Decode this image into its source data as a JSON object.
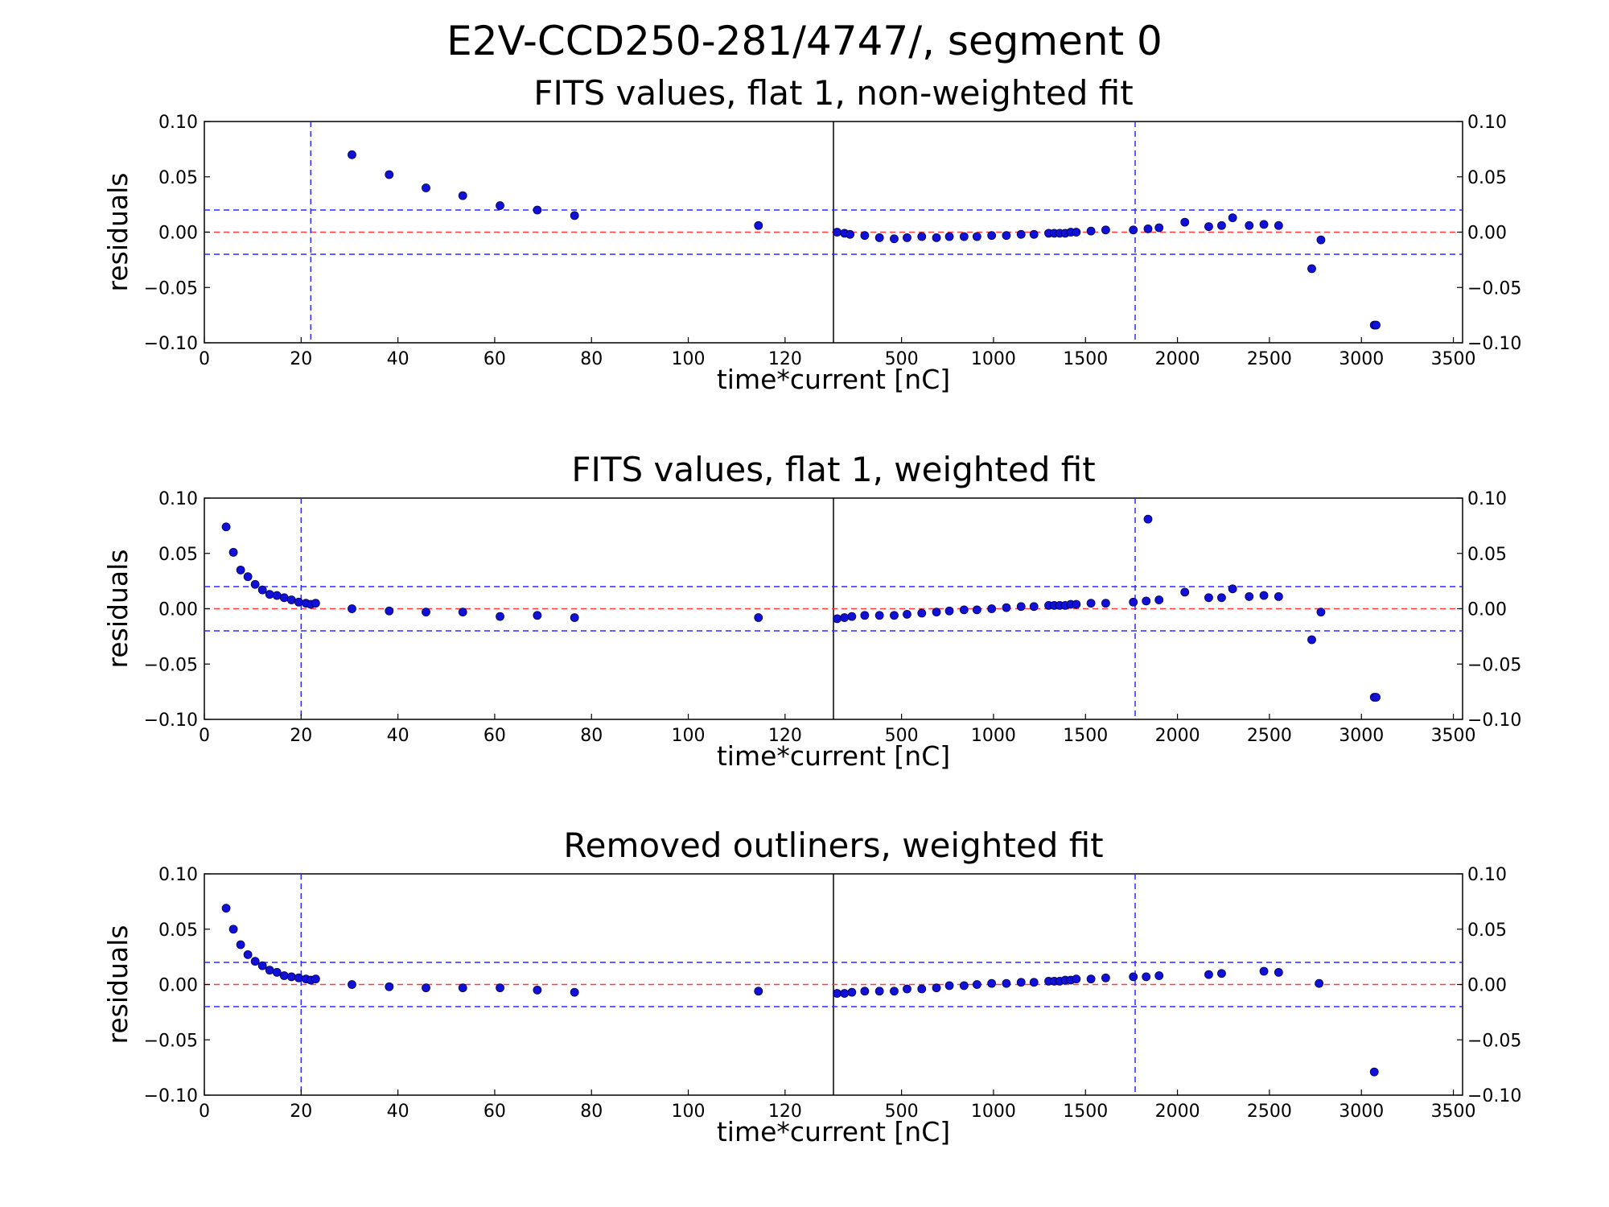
{
  "figure": {
    "suptitle": "E2V-CCD250-281/4747/, segment 0"
  },
  "chart_data": [
    {
      "type": "scatter",
      "title": "FITS values, flat 1, non-weighted fit",
      "xlabel": "time*current [nC]",
      "ylabel": "residuals",
      "ylim": [
        -0.1,
        0.1
      ],
      "yticks": [
        "0.10",
        "0.05",
        "0.00",
        "−0.05",
        "−0.10"
      ],
      "threshold_lines": {
        "zero": 0.0,
        "upper": 0.02,
        "lower": -0.02
      },
      "left": {
        "xlim": [
          0,
          130
        ],
        "xticks": [
          "0",
          "20",
          "40",
          "60",
          "80",
          "100",
          "120"
        ],
        "vline": 22,
        "points": [
          [
            30.5,
            0.07
          ],
          [
            38.2,
            0.052
          ],
          [
            45.8,
            0.04
          ],
          [
            53.4,
            0.033
          ],
          [
            61.1,
            0.024
          ],
          [
            68.8,
            0.02
          ],
          [
            76.5,
            0.015
          ],
          [
            114.5,
            0.006
          ]
        ]
      },
      "right": {
        "xlim": [
          130,
          3550
        ],
        "xticks": [
          "500",
          "1000",
          "1500",
          "2000",
          "2500",
          "3000",
          "3500"
        ],
        "vline": 1770,
        "points": [
          [
            150,
            0.0
          ],
          [
            190,
            -0.001
          ],
          [
            220,
            -0.002
          ],
          [
            300,
            -0.003
          ],
          [
            380,
            -0.005
          ],
          [
            460,
            -0.006
          ],
          [
            530,
            -0.005
          ],
          [
            610,
            -0.004
          ],
          [
            690,
            -0.005
          ],
          [
            760,
            -0.004
          ],
          [
            840,
            -0.004
          ],
          [
            910,
            -0.004
          ],
          [
            990,
            -0.003
          ],
          [
            1070,
            -0.003
          ],
          [
            1150,
            -0.002
          ],
          [
            1220,
            -0.002
          ],
          [
            1300,
            -0.001
          ],
          [
            1330,
            -0.001
          ],
          [
            1360,
            -0.001
          ],
          [
            1390,
            -0.001
          ],
          [
            1420,
            0.0
          ],
          [
            1450,
            0.0
          ],
          [
            1530,
            0.001
          ],
          [
            1610,
            0.002
          ],
          [
            1760,
            0.002
          ],
          [
            1840,
            0.003
          ],
          [
            1900,
            0.004
          ],
          [
            2040,
            0.009
          ],
          [
            2170,
            0.005
          ],
          [
            2240,
            0.006
          ],
          [
            2300,
            0.013
          ],
          [
            2390,
            0.006
          ],
          [
            2470,
            0.007
          ],
          [
            2550,
            0.006
          ],
          [
            2730,
            -0.033
          ],
          [
            2780,
            -0.007
          ],
          [
            3070,
            -0.084
          ],
          [
            3080,
            -0.084
          ]
        ]
      }
    },
    {
      "type": "scatter",
      "title": "FITS values, flat 1, weighted fit",
      "xlabel": "time*current [nC]",
      "ylabel": "residuals",
      "ylim": [
        -0.1,
        0.1
      ],
      "yticks": [
        "0.10",
        "0.05",
        "0.00",
        "−0.05",
        "−0.10"
      ],
      "threshold_lines": {
        "zero": 0.0,
        "upper": 0.02,
        "lower": -0.02
      },
      "left": {
        "xlim": [
          0,
          130
        ],
        "xticks": [
          "0",
          "20",
          "40",
          "60",
          "80",
          "100",
          "120"
        ],
        "vline": 20,
        "points": [
          [
            4.5,
            0.074
          ],
          [
            6,
            0.051
          ],
          [
            7.5,
            0.035
          ],
          [
            9,
            0.029
          ],
          [
            10.5,
            0.022
          ],
          [
            12,
            0.017
          ],
          [
            13.5,
            0.013
          ],
          [
            15,
            0.012
          ],
          [
            16.5,
            0.01
          ],
          [
            18,
            0.008
          ],
          [
            19.5,
            0.006
          ],
          [
            21,
            0.005
          ],
          [
            22,
            0.004
          ],
          [
            23,
            0.005
          ],
          [
            30.5,
            0.0
          ],
          [
            38.2,
            -0.002
          ],
          [
            45.8,
            -0.003
          ],
          [
            53.4,
            -0.003
          ],
          [
            61.1,
            -0.007
          ],
          [
            68.8,
            -0.006
          ],
          [
            76.5,
            -0.008
          ],
          [
            114.5,
            -0.008
          ]
        ]
      },
      "right": {
        "xlim": [
          130,
          3550
        ],
        "xticks": [
          "500",
          "1000",
          "1500",
          "2000",
          "2500",
          "3000",
          "3500"
        ],
        "vline": 1770,
        "points": [
          [
            150,
            -0.009
          ],
          [
            190,
            -0.008
          ],
          [
            230,
            -0.007
          ],
          [
            300,
            -0.006
          ],
          [
            380,
            -0.006
          ],
          [
            460,
            -0.006
          ],
          [
            530,
            -0.005
          ],
          [
            610,
            -0.004
          ],
          [
            690,
            -0.003
          ],
          [
            760,
            -0.002
          ],
          [
            840,
            -0.001
          ],
          [
            910,
            -0.001
          ],
          [
            990,
            0.0
          ],
          [
            1070,
            0.001
          ],
          [
            1150,
            0.002
          ],
          [
            1220,
            0.002
          ],
          [
            1300,
            0.003
          ],
          [
            1330,
            0.003
          ],
          [
            1360,
            0.003
          ],
          [
            1390,
            0.003
          ],
          [
            1420,
            0.004
          ],
          [
            1450,
            0.004
          ],
          [
            1530,
            0.005
          ],
          [
            1610,
            0.005
          ],
          [
            1760,
            0.006
          ],
          [
            1840,
            0.081
          ],
          [
            1830,
            0.007
          ],
          [
            1900,
            0.008
          ],
          [
            2040,
            0.015
          ],
          [
            2170,
            0.01
          ],
          [
            2240,
            0.01
          ],
          [
            2300,
            0.018
          ],
          [
            2390,
            0.011
          ],
          [
            2470,
            0.012
          ],
          [
            2550,
            0.011
          ],
          [
            2730,
            -0.028
          ],
          [
            2780,
            -0.003
          ],
          [
            3070,
            -0.08
          ],
          [
            3080,
            -0.08
          ]
        ]
      }
    },
    {
      "type": "scatter",
      "title": "Removed outliners, weighted fit",
      "xlabel": "time*current [nC]",
      "ylabel": "residuals",
      "ylim": [
        -0.1,
        0.1
      ],
      "yticks": [
        "0.10",
        "0.05",
        "0.00",
        "−0.05",
        "−0.10"
      ],
      "threshold_lines": {
        "zero": 0.0,
        "upper": 0.02,
        "lower": -0.02
      },
      "left": {
        "xlim": [
          0,
          130
        ],
        "xticks": [
          "0",
          "20",
          "40",
          "60",
          "80",
          "100",
          "120"
        ],
        "vline": 20,
        "points": [
          [
            4.5,
            0.069
          ],
          [
            6,
            0.05
          ],
          [
            7.5,
            0.036
          ],
          [
            9,
            0.027
          ],
          [
            10.5,
            0.021
          ],
          [
            12,
            0.017
          ],
          [
            13.5,
            0.013
          ],
          [
            15,
            0.011
          ],
          [
            16.5,
            0.008
          ],
          [
            18,
            0.007
          ],
          [
            19.5,
            0.006
          ],
          [
            21,
            0.005
          ],
          [
            22,
            0.004
          ],
          [
            23,
            0.005
          ],
          [
            30.5,
            0.0
          ],
          [
            38.2,
            -0.002
          ],
          [
            45.8,
            -0.003
          ],
          [
            53.4,
            -0.003
          ],
          [
            61.1,
            -0.003
          ],
          [
            68.8,
            -0.005
          ],
          [
            76.5,
            -0.007
          ],
          [
            114.5,
            -0.006
          ]
        ]
      },
      "right": {
        "xlim": [
          130,
          3550
        ],
        "xticks": [
          "500",
          "1000",
          "1500",
          "2000",
          "2500",
          "3000",
          "3500"
        ],
        "vline": 1770,
        "points": [
          [
            150,
            -0.008
          ],
          [
            190,
            -0.008
          ],
          [
            230,
            -0.007
          ],
          [
            300,
            -0.006
          ],
          [
            380,
            -0.006
          ],
          [
            460,
            -0.006
          ],
          [
            530,
            -0.004
          ],
          [
            610,
            -0.004
          ],
          [
            690,
            -0.003
          ],
          [
            760,
            -0.001
          ],
          [
            840,
            -0.001
          ],
          [
            910,
            0.0
          ],
          [
            990,
            0.001
          ],
          [
            1070,
            0.001
          ],
          [
            1150,
            0.002
          ],
          [
            1220,
            0.002
          ],
          [
            1300,
            0.003
          ],
          [
            1330,
            0.003
          ],
          [
            1360,
            0.003
          ],
          [
            1390,
            0.004
          ],
          [
            1420,
            0.004
          ],
          [
            1450,
            0.005
          ],
          [
            1530,
            0.005
          ],
          [
            1610,
            0.006
          ],
          [
            1760,
            0.007
          ],
          [
            1830,
            0.007
          ],
          [
            1900,
            0.008
          ],
          [
            2170,
            0.009
          ],
          [
            2240,
            0.01
          ],
          [
            2470,
            0.012
          ],
          [
            2550,
            0.011
          ],
          [
            2770,
            0.001
          ],
          [
            3070,
            -0.079
          ]
        ]
      }
    }
  ]
}
